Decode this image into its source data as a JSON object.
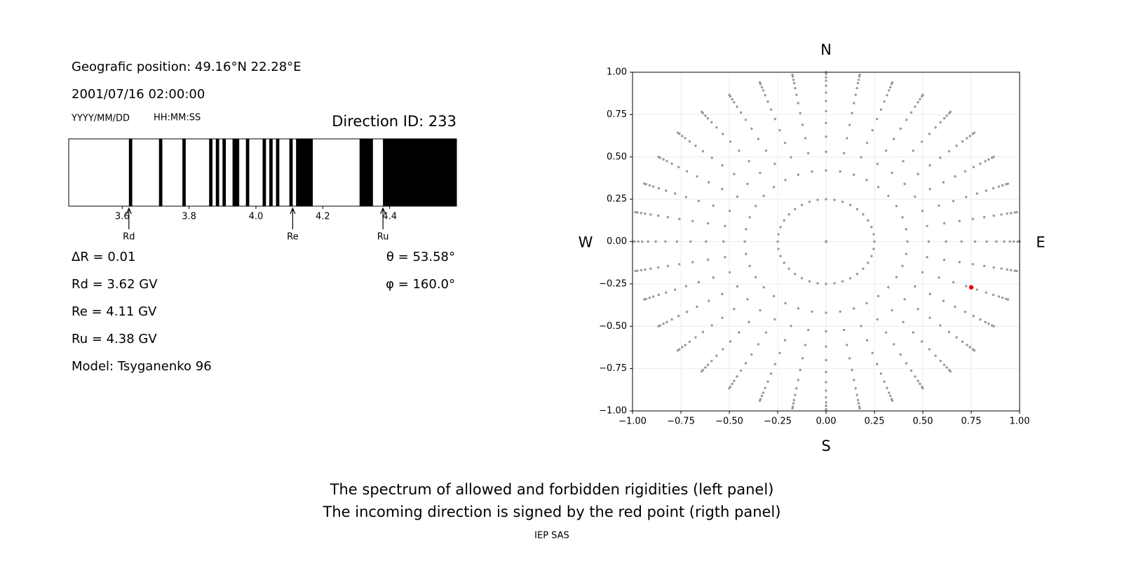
{
  "header": {
    "position": "Geografic position: 49.16°N 22.28°E",
    "datetime": "2001/07/16 02:00:00",
    "date_format": "YYYY/MM/DD",
    "time_format": "HH:MM:SS",
    "direction_id": "Direction ID: 233"
  },
  "chart_data": [
    {
      "type": "spectrum",
      "xlim": [
        3.44,
        4.6
      ],
      "xticks": [
        3.6,
        3.8,
        {
          "value": 4,
          "label": "4.0"
        },
        4.2,
        4.4
      ],
      "bands": [
        [
          3.62,
          3.63
        ],
        [
          3.71,
          3.72
        ],
        [
          3.78,
          3.79
        ],
        [
          3.86,
          3.87
        ],
        [
          3.88,
          3.89
        ],
        [
          3.9,
          3.91
        ],
        [
          3.93,
          3.95
        ],
        [
          3.97,
          3.98
        ],
        [
          4.02,
          4.03
        ],
        [
          4.04,
          4.05
        ],
        [
          4.06,
          4.07
        ],
        [
          4.1,
          4.11
        ],
        [
          4.12,
          4.17
        ],
        [
          4.31,
          4.35
        ],
        [
          4.38,
          4.6
        ]
      ],
      "color": "#000000",
      "markers": [
        {
          "label": "Rd",
          "value": 3.62
        },
        {
          "label": "Re",
          "value": 4.11
        },
        {
          "label": "Ru",
          "value": 4.38
        }
      ]
    },
    {
      "type": "polar-scatter",
      "xlim": [
        -1,
        1
      ],
      "ylim": [
        -1,
        1
      ],
      "xticks": [
        {
          "value": -1,
          "label": "−1.00"
        },
        {
          "value": -0.75,
          "label": "−0.75"
        },
        {
          "value": -0.5,
          "label": "−0.50"
        },
        {
          "value": -0.25,
          "label": "−0.25"
        },
        {
          "value": 0,
          "label": "0.00"
        },
        {
          "value": 0.25,
          "label": "0.25"
        },
        {
          "value": 0.5,
          "label": "0.50"
        },
        {
          "value": 0.75,
          "label": "0.75"
        },
        {
          "value": 1,
          "label": "1.00"
        }
      ],
      "yticks": [
        {
          "value": -1,
          "label": "−1.00"
        },
        {
          "value": -0.75,
          "label": "−0.75"
        },
        {
          "value": -0.5,
          "label": "−0.50"
        },
        {
          "value": -0.25,
          "label": "−0.25"
        },
        {
          "value": 0,
          "label": "0.00"
        },
        {
          "value": 0.25,
          "label": "0.25"
        },
        {
          "value": 0.5,
          "label": "0.50"
        },
        {
          "value": 0.75,
          "label": "0.75"
        },
        {
          "value": 1,
          "label": "1.00"
        }
      ],
      "grid": true,
      "color": "#999999",
      "radii": [
        0,
        0.25,
        0.42,
        0.53,
        0.62,
        0.7,
        0.77,
        0.83,
        0.88,
        0.92,
        0.95,
        0.97,
        0.99,
        1.0
      ],
      "azimuths": [
        0,
        10,
        20,
        30,
        40,
        50,
        60,
        70,
        80,
        90,
        100,
        110,
        120,
        130,
        140,
        150,
        160,
        170,
        180,
        190,
        200,
        210,
        220,
        230,
        240,
        250,
        260,
        270,
        280,
        290,
        300,
        310,
        320,
        330,
        340,
        350
      ],
      "highlight": {
        "x": 0.75,
        "y": -0.27,
        "color": "#ee0000"
      },
      "directions": {
        "north": "N",
        "south": "S",
        "west": "W",
        "east": "E"
      }
    }
  ],
  "results": [
    "ΔR = 0.01",
    "Rd = 3.62 GV",
    "Re = 4.11 GV",
    "Ru = 4.38 GV",
    "Model: Tsyganenko 96"
  ],
  "angles": [
    "θ = 53.58°",
    "φ = 160.0°"
  ],
  "caption": [
    "The spectrum of allowed and forbidden rigidities (left panel)",
    "The incoming direction is signed by the red point (rigth panel)"
  ],
  "footer": "IEP SAS"
}
